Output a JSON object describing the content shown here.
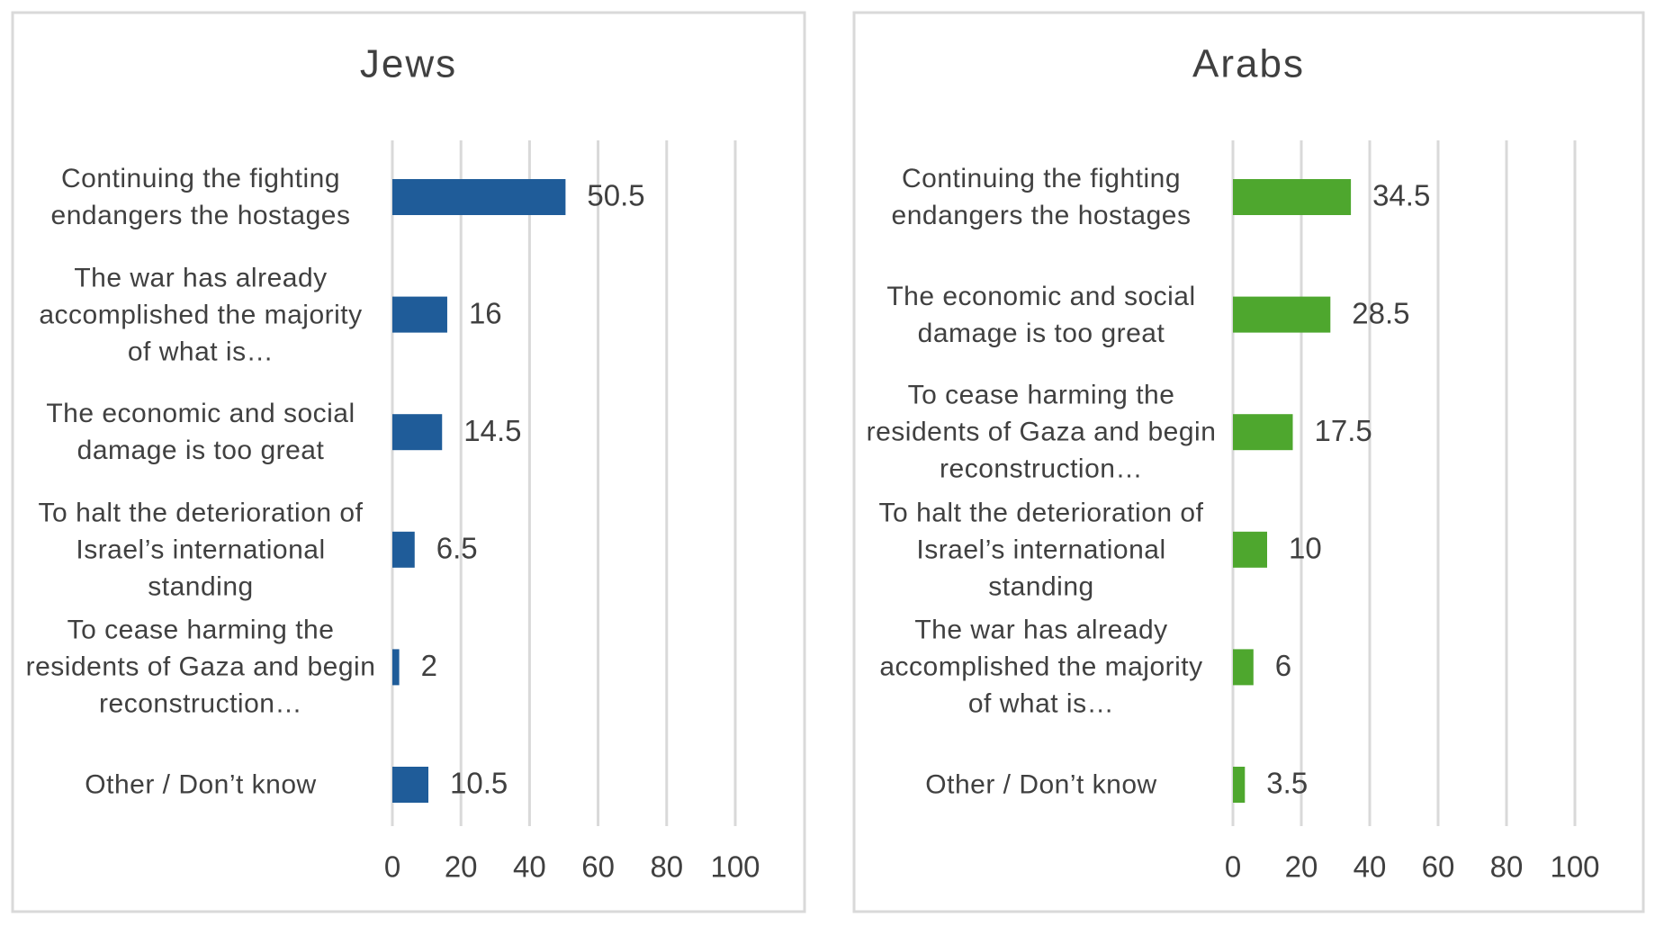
{
  "chart_data": [
    {
      "type": "bar",
      "orientation": "horizontal",
      "title": "Jews",
      "categories": [
        "Continuing the fighting endangers the hostages",
        "The war has already accomplished the majority of what is…",
        "The economic and social damage is too great",
        "To halt the deterioration of Israel’s international standing",
        "To cease harming the residents of Gaza and begin reconstruction…",
        "Other / Don’t know"
      ],
      "values": [
        50.5,
        16,
        14.5,
        6.5,
        2,
        10.5
      ],
      "color": "#1f5c99",
      "xlim": [
        0,
        100
      ],
      "xticks": [
        0,
        20,
        40,
        60,
        80,
        100
      ],
      "grid": true
    },
    {
      "type": "bar",
      "orientation": "horizontal",
      "title": "Arabs",
      "categories": [
        "Continuing the fighting endangers the hostages",
        "The economic and social damage is too great",
        "To cease harming the residents of Gaza and begin reconstruction…",
        "To halt the deterioration of Israel’s international standing",
        "The war has already accomplished the majority of what is…",
        "Other / Don’t know"
      ],
      "values": [
        34.5,
        28.5,
        17.5,
        10,
        6,
        3.5
      ],
      "color": "#4ea72e",
      "xlim": [
        0,
        100
      ],
      "xticks": [
        0,
        20,
        40,
        60,
        80,
        100
      ],
      "grid": true
    }
  ]
}
